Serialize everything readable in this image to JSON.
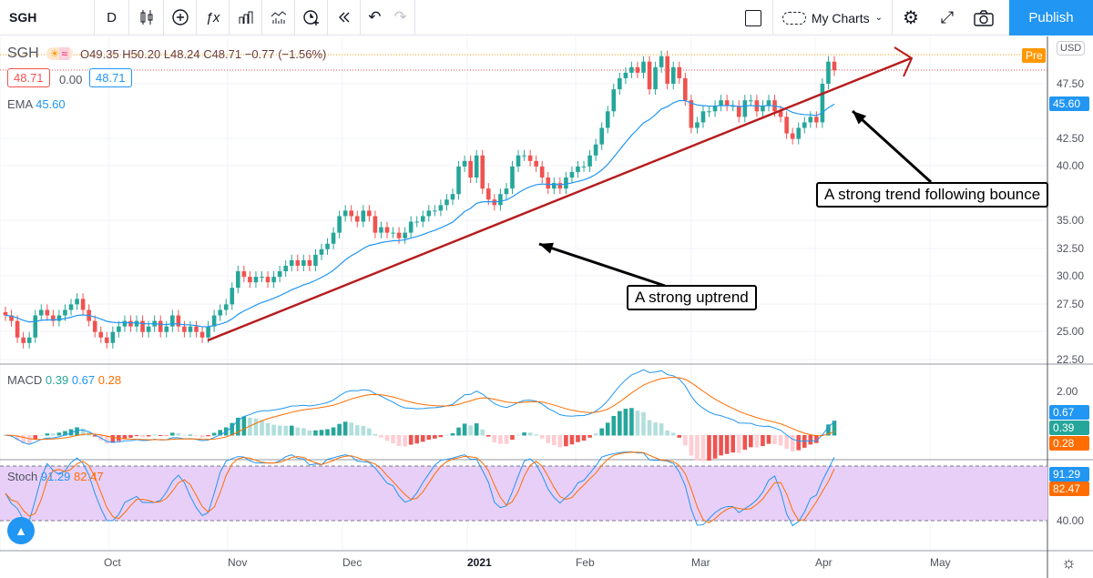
{
  "toolbar": {
    "symbol": "SGH",
    "interval": "D",
    "my_charts": "My Charts",
    "publish": "Publish"
  },
  "legend": {
    "symbol": "SGH",
    "ohlc": "O49.35 H50.20 L48.24 C48.71 −0.77 (−1.56%)",
    "bid": "48.71",
    "spread": "0.00",
    "ask": "48.71",
    "ema_label": "EMA",
    "ema_value": "45.60",
    "macd_label": "MACD",
    "macd_vals": [
      "0.39",
      "0.67",
      "0.28"
    ],
    "stoch_label": "Stoch",
    "stoch_vals": [
      "91.29",
      "82.47"
    ]
  },
  "axis": {
    "currency": "USD",
    "pre": "Pre",
    "price_ticks": [
      "47.50",
      "42.50",
      "40.00",
      "35.00",
      "32.50",
      "30.00",
      "27.50",
      "25.00",
      "22.50"
    ],
    "ema_tag": "45.60",
    "macd_ticks": [
      "2.00"
    ],
    "macd_tags": [
      "0.67",
      "0.39",
      "0.28"
    ],
    "stoch_ticks": [
      "40.00"
    ],
    "stoch_tags": [
      "91.29",
      "82.47"
    ]
  },
  "time_labels": [
    "Oct",
    "Nov",
    "Dec",
    "2021",
    "Feb",
    "Mar",
    "Apr",
    "May"
  ],
  "annotations": {
    "uptrend": "A strong uptrend",
    "bounce": "A strong trend following bounce"
  },
  "colors": {
    "up": "#26a69a",
    "down": "#ef5350",
    "ema": "#2196f3",
    "trend": "#b71c1c",
    "publish": "#2196f3"
  },
  "chart_data": {
    "type": "candlestick",
    "title": "SGH Daily",
    "ylim": [
      22.5,
      50
    ],
    "closes": [
      26.5,
      26,
      24.5,
      24,
      24.5,
      26.5,
      27,
      26.5,
      26,
      26.5,
      27,
      27.5,
      28,
      27,
      26,
      25,
      24.5,
      24,
      25,
      25.5,
      26,
      25.5,
      26,
      25,
      25.5,
      26,
      25,
      25.5,
      26.5,
      25.5,
      25,
      25.5,
      25,
      24.5,
      25.5,
      26.5,
      27,
      27.5,
      29,
      30.5,
      30,
      29.5,
      30,
      30,
      29.5,
      30,
      30.5,
      31,
      31.5,
      31,
      31.5,
      31,
      32,
      32.5,
      33,
      34,
      35.5,
      36,
      35.5,
      35,
      36,
      35.5,
      34,
      34.5,
      34,
      34,
      33.5,
      34,
      35,
      35,
      35.5,
      36,
      36,
      36.5,
      37,
      37.5,
      40,
      40.5,
      39,
      41,
      38,
      37,
      36.5,
      37.5,
      38,
      40,
      41,
      41,
      40.5,
      40,
      39,
      38,
      38.5,
      38,
      39,
      39.5,
      40,
      40,
      41,
      42,
      43.5,
      45,
      47,
      48,
      48.5,
      49,
      48.5,
      49.5,
      47,
      49,
      50,
      47.5,
      49,
      48,
      46,
      43.5,
      44,
      45,
      45,
      45.5,
      46,
      45.5,
      45.5,
      44.5,
      46,
      46,
      45,
      45.5,
      46,
      45,
      44.5,
      43,
      42.5,
      43.5,
      44,
      44.5,
      44,
      47.5,
      49.5,
      48.71
    ],
    "ema_period": 20
  }
}
